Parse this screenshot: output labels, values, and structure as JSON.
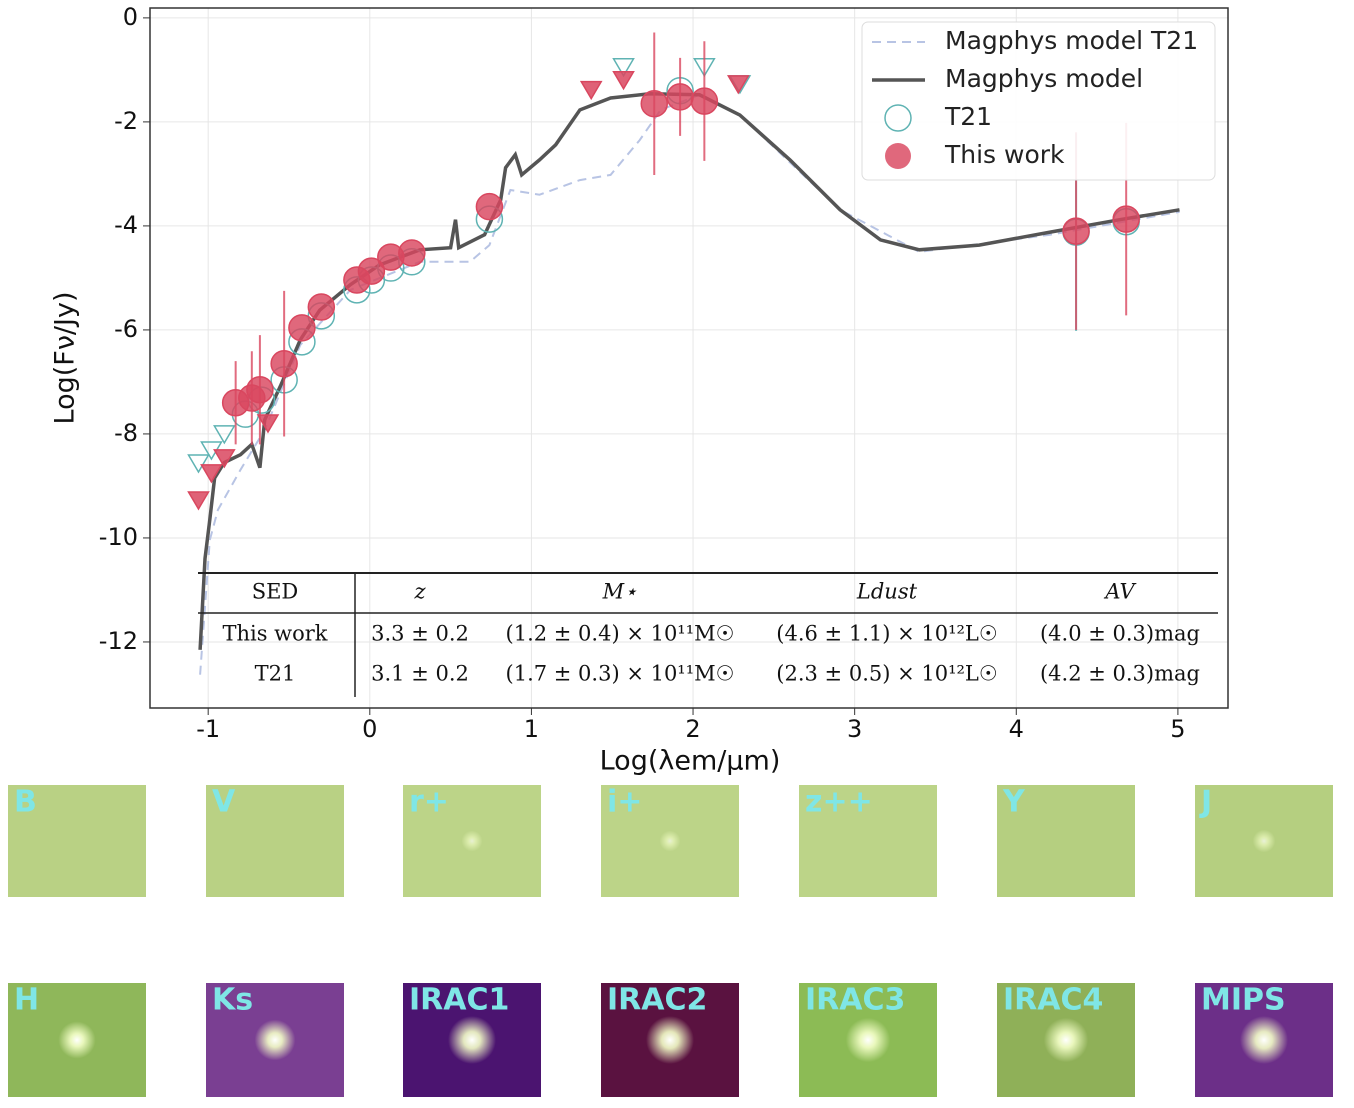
{
  "chart_data": {
    "type": "line",
    "xlabel": "Log(λem/μm)",
    "ylabel": "Log(Fν/Jy)",
    "xlim": [
      -1.36,
      5.31
    ],
    "ylim": [
      -13.27,
      0.19
    ],
    "xticks": [
      -1,
      0,
      1,
      2,
      3,
      4,
      5
    ],
    "yticks": [
      0,
      -2,
      -4,
      -6,
      -8,
      -10,
      -12
    ],
    "grid": true,
    "legend": "upper right",
    "series": [
      {
        "name": "Magphys model T21",
        "color": "#b8c4e4",
        "style": "dashed",
        "x": [
          -1.05,
          -0.99,
          -0.94,
          -0.8,
          -0.65,
          -0.43,
          -0.12,
          0.31,
          0.62,
          0.74,
          0.87,
          1.05,
          1.3,
          1.49,
          1.67,
          1.8,
          2.04,
          2.29,
          2.91,
          3.4,
          4.21,
          5.01
        ],
        "values": [
          -12.63,
          -10.04,
          -9.46,
          -8.69,
          -7.92,
          -6.29,
          -5.23,
          -4.69,
          -4.69,
          -4.37,
          -3.31,
          -3.4,
          -3.12,
          -3.02,
          -2.35,
          -1.77,
          -1.48,
          -1.87,
          -3.69,
          -4.5,
          -4.17,
          -3.73
        ]
      },
      {
        "name": "Magphys model",
        "color": "#555555",
        "style": "solid",
        "x": [
          -1.05,
          -1.02,
          -0.99,
          -0.96,
          -0.9,
          -0.8,
          -0.73,
          -0.68,
          -0.65,
          -0.55,
          -0.43,
          -0.31,
          -0.12,
          0.06,
          0.31,
          0.5,
          0.53,
          0.55,
          0.71,
          0.81,
          0.84,
          0.9,
          0.94,
          1.05,
          1.15,
          1.3,
          1.49,
          1.73,
          2.04,
          2.29,
          2.6,
          2.91,
          3.16,
          3.4,
          3.77,
          4.21,
          4.64,
          5.01
        ],
        "values": [
          -12.15,
          -10.4,
          -9.65,
          -8.85,
          -8.55,
          -8.4,
          -8.2,
          -8.65,
          -7.73,
          -7.06,
          -6.19,
          -5.62,
          -5.13,
          -4.75,
          -4.46,
          -4.42,
          -3.88,
          -4.42,
          -4.17,
          -3.5,
          -2.88,
          -2.63,
          -3.02,
          -2.73,
          -2.44,
          -1.77,
          -1.54,
          -1.46,
          -1.48,
          -1.87,
          -2.73,
          -3.69,
          -4.27,
          -4.46,
          -4.37,
          -4.12,
          -3.88,
          -3.69
        ]
      },
      {
        "name": "T21",
        "color": "#5fb3b3",
        "marker": "open-circle",
        "x": [
          -0.77,
          -0.67,
          -0.53,
          -0.42,
          -0.3,
          -0.08,
          0.01,
          0.13,
          0.26,
          0.74,
          1.92,
          4.37,
          4.68
        ],
        "values": [
          -7.62,
          -7.35,
          -6.96,
          -6.23,
          -5.73,
          -5.23,
          -5.04,
          -4.81,
          -4.69,
          -3.87,
          -1.4,
          -4.12,
          -3.92
        ],
        "errors": [
          null,
          null,
          null,
          null,
          null,
          null,
          null,
          null,
          null,
          null,
          null,
          1.9,
          null
        ],
        "limits_x": [
          -1.06,
          -0.98,
          -0.9,
          1.57,
          2.07,
          2.29
        ],
        "limits_values": [
          -8.56,
          -8.31,
          -8.0,
          -0.94,
          -0.94,
          -1.27
        ]
      },
      {
        "name": "This work",
        "color": "#d9475f",
        "marker": "filled-circle",
        "x": [
          -0.83,
          -0.73,
          -0.68,
          -0.53,
          -0.42,
          -0.3,
          -0.08,
          0.01,
          0.13,
          0.26,
          0.74,
          1.76,
          1.92,
          2.07,
          4.37,
          4.68
        ],
        "values": [
          -7.4,
          -7.31,
          -7.15,
          -6.65,
          -5.96,
          -5.56,
          -5.04,
          -4.87,
          -4.6,
          -4.52,
          -3.63,
          -1.65,
          -1.52,
          -1.6,
          -4.1,
          -3.87
        ],
        "errors": [
          0.8,
          0.9,
          1.05,
          1.4,
          null,
          null,
          null,
          null,
          null,
          null,
          null,
          1.37,
          0.75,
          1.15,
          1.9,
          1.85
        ],
        "limits_x": [
          -1.06,
          -0.98,
          -0.9,
          -0.63,
          1.37,
          1.57,
          2.28
        ],
        "limits_values": [
          -9.27,
          -8.75,
          -8.46,
          -7.79,
          -1.38,
          -1.19,
          -1.27
        ]
      }
    ],
    "table": {
      "headers": [
        "SED",
        "z",
        "M⋆",
        "Ldust",
        "AV"
      ],
      "rows": [
        [
          "This work",
          "3.3 ± 0.2",
          "(1.2 ± 0.4) × 10¹¹M☉",
          "(4.6 ± 1.1) × 10¹²L☉",
          "(4.0 ± 0.3)mag"
        ],
        [
          "T21",
          "3.1 ± 0.2",
          "(1.7 ± 0.3) × 10¹¹M☉",
          "(2.3 ± 0.5) × 10¹²L☉",
          "(4.2 ± 0.3)mag"
        ]
      ]
    }
  },
  "panels": [
    "B",
    "V",
    "r+",
    "i+",
    "z++",
    "Y",
    "J",
    "H",
    "Ks",
    "IRAC1",
    "IRAC2",
    "IRAC3",
    "IRAC4",
    "MIPS"
  ]
}
